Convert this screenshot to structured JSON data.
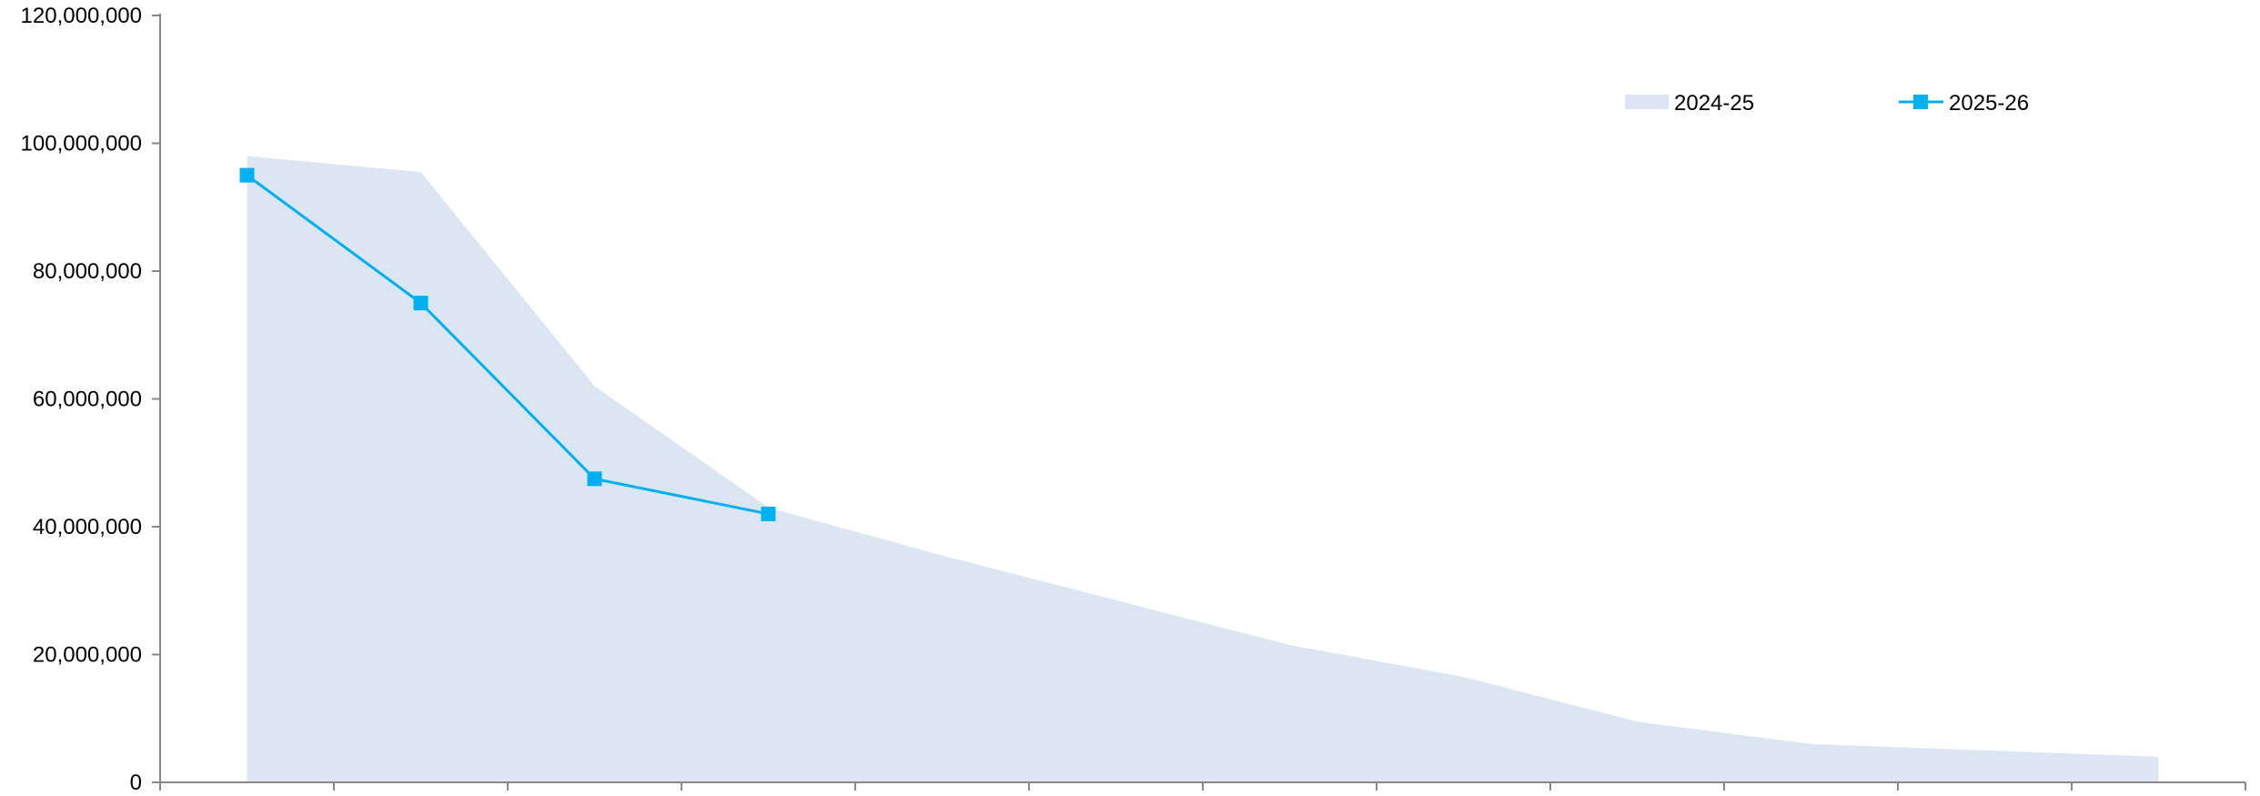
{
  "chart_data": {
    "type": "area",
    "title": "",
    "xlabel": "",
    "ylabel": "",
    "ylim": [
      0,
      120000000
    ],
    "y_ticks": [
      0,
      20000000,
      40000000,
      60000000,
      80000000,
      100000000,
      120000000
    ],
    "y_tick_labels": [
      "0",
      "20,000,000",
      "40,000,000",
      "60,000,000",
      "80,000,000",
      "100,000,000",
      "120,000,000"
    ],
    "category_count": 12,
    "grid": false,
    "legend_position": "top-right",
    "series": [
      {
        "name": "2024-25",
        "type": "area",
        "color": "#dce6f2",
        "values": [
          98000000,
          95500000,
          62000000,
          43000000,
          35500000,
          28500000,
          21500000,
          16500000,
          9500000,
          6000000,
          5000000,
          4000000
        ]
      },
      {
        "name": "2025-26",
        "type": "line",
        "marker": "square",
        "color": "#00b0f0",
        "values": [
          95000000,
          75000000,
          47500000,
          42000000
        ]
      }
    ]
  }
}
